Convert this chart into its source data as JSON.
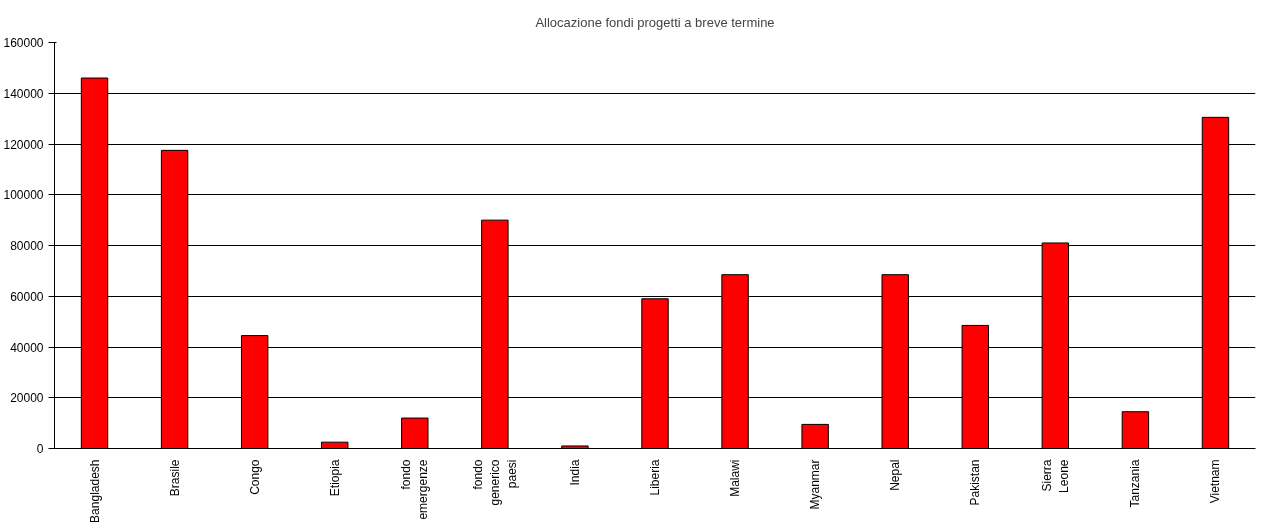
{
  "chart_data": {
    "type": "bar",
    "title": "Allocazione fondi progetti a breve termine",
    "categories": [
      "Bangladesh",
      "Brasile",
      "Congo",
      "Etiopia",
      "fondo emergenze",
      "fondo generico paesi",
      "India",
      "Liberia",
      "Malawi",
      "Myanmar",
      "Nepal",
      "Pakistan",
      "Sierra Leone",
      "Tanzania",
      "Vietnam"
    ],
    "values": [
      146000,
      117500,
      44500,
      2500,
      12000,
      90000,
      1000,
      59000,
      68500,
      9500,
      68500,
      48500,
      81000,
      14500,
      130500
    ],
    "color": "#ff0000",
    "ylim": [
      0,
      160000
    ],
    "yticks": [
      0,
      20000,
      40000,
      60000,
      80000,
      100000,
      120000,
      140000,
      160000
    ],
    "grid": "y"
  }
}
